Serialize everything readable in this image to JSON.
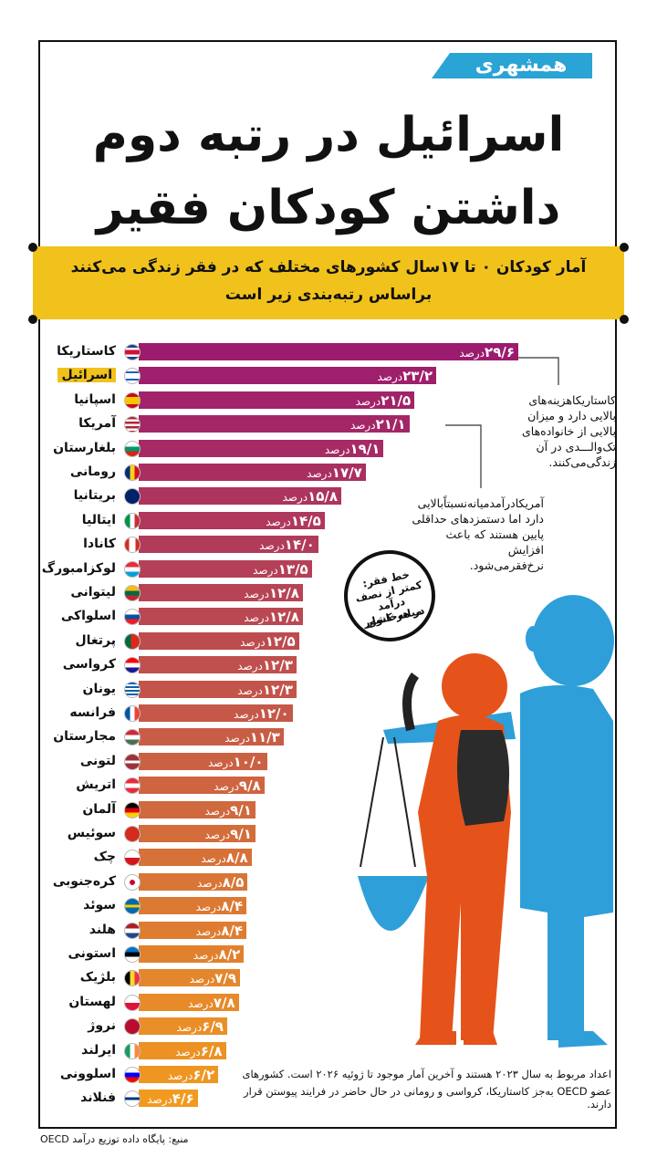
{
  "logo": "همشهری",
  "title": {
    "line1": "اسرائیل در رتبه دوم",
    "line2": "داشتن کودکان فقیر"
  },
  "subtitle": {
    "line1": "آمار کودکان ۰ تا ۱۷سال کشورهای مختلف که در فقر زندگی می‌کنند",
    "line2": "براساس رتبه‌بندی زیر است"
  },
  "unit_label": "درصد",
  "notes": {
    "costa_rica": [
      "کاستاریکاهزینه‌های",
      "بالایی دارد و میزان",
      "بالایی از خانواده‌های",
      "تک‌والـــدی در آن",
      "زندگی‌می‌کنند."
    ],
    "usa": [
      "آمریکادرآمدمیانه‌نسبتاًبالایی",
      "دارد اما دستمزدهای حداقلی",
      "پایین هستند که باعث افزایش",
      "نرخ‌فقرمی‌شود."
    ]
  },
  "badge": {
    "lines": [
      "خط فقر:",
      "کمتر از نصف",
      "درآمد میانه‌خانوار",
      "در هر کشور"
    ]
  },
  "footer": [
    "اعداد مربوط به سال ۲۰۲۳ هستند و آخرین آمار موجود تا ژوئیه ۲۰۲۶ است. کشورهای",
    "عضو OECD به‌جز کاستاریکا، کرواسی و رومانی در حال حاضر در فرایند پیوستن قرار دارند."
  ],
  "source": "منبع: پایگاه داده توزیع درآمد OECD",
  "colors": {
    "accent": "#f1c21b",
    "logo_blue": "#2aa3d5",
    "bar_top": "#9b1b6e",
    "bar_bottom": "#f29a1f"
  },
  "chart_data": {
    "type": "bar",
    "orientation": "horizontal",
    "categories": [
      "کاستاریکا",
      "اسرائیل",
      "اسپانیا",
      "آمریکا",
      "بلغارستان",
      "رومانی",
      "بریتانیا",
      "ایتالیا",
      "کانادا",
      "لوکزامبورگ",
      "لیتوانی",
      "اسلواکی",
      "پرتغال",
      "کرواسی",
      "یونان",
      "فرانسه",
      "مجارستان",
      "لتونی",
      "اتریش",
      "آلمان",
      "سوئیس",
      "چک",
      "کره‌جنوبی",
      "سوئد",
      "هلند",
      "استونی",
      "بلژیک",
      "لهستان",
      "نروژ",
      "ایرلند",
      "اسلوونی",
      "فنلاند"
    ],
    "values": [
      29.6,
      23.2,
      21.5,
      21.1,
      19.1,
      17.7,
      15.8,
      14.5,
      14.0,
      13.5,
      12.8,
      12.8,
      12.5,
      12.3,
      12.3,
      12.0,
      11.3,
      10.0,
      9.8,
      9.1,
      9.1,
      8.8,
      8.5,
      8.4,
      8.4,
      8.2,
      7.9,
      7.8,
      6.9,
      6.8,
      6.2,
      4.6
    ],
    "value_labels": [
      "۲۹/۶",
      "۲۳/۲",
      "۲۱/۵",
      "۲۱/۱",
      "۱۹/۱",
      "۱۷/۷",
      "۱۵/۸",
      "۱۴/۵",
      "۱۴/۰",
      "۱۳/۵",
      "۱۲/۸",
      "۱۲/۸",
      "۱۲/۵",
      "۱۲/۳",
      "۱۲/۳",
      "۱۲/۰",
      "۱۱/۳",
      "۱۰/۰",
      "۹/۸",
      "۹/۱",
      "۹/۱",
      "۸/۸",
      "۸/۵",
      "۸/۴",
      "۸/۴",
      "۸/۲",
      "۷/۹",
      "۷/۸",
      "۶/۹",
      "۶/۸",
      "۶/۲",
      "۴/۶"
    ],
    "highlight": "اسرائیل",
    "unit": "درصد"
  }
}
